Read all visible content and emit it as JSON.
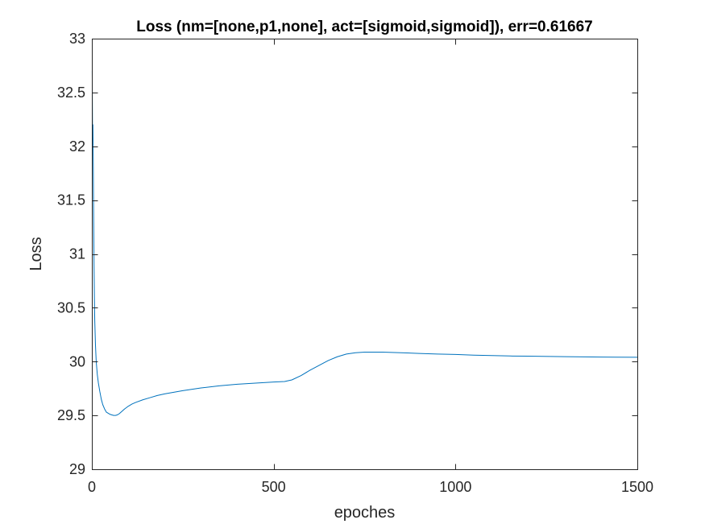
{
  "chart_data": {
    "type": "line",
    "title": "Loss (nm=[none,p1,none], act=[sigmoid,sigmoid]), err=0.61667",
    "xlabel": "epoches",
    "ylabel": "Loss",
    "xlim": [
      0,
      1500
    ],
    "ylim": [
      29,
      33
    ],
    "xticks": [
      0,
      500,
      1000,
      1500
    ],
    "xtick_labels": [
      "0",
      "500",
      "1000",
      "1500"
    ],
    "yticks": [
      29,
      29.5,
      30,
      30.5,
      31,
      31.5,
      32,
      32.5,
      33
    ],
    "ytick_labels": [
      "29",
      "29.5",
      "30",
      "30.5",
      "31",
      "31.5",
      "32",
      "32.5",
      "33"
    ],
    "grid": false,
    "line_color": "#0072BD",
    "series": [
      {
        "x": [
          1,
          2,
          3,
          4,
          5,
          6,
          7,
          8,
          10,
          12,
          15,
          18,
          22,
          26,
          30,
          35,
          40,
          45,
          50,
          55,
          60,
          65,
          70,
          75,
          80,
          90,
          100,
          110,
          120,
          140,
          160,
          180,
          200,
          250,
          300,
          350,
          400,
          450,
          500,
          530,
          550,
          575,
          600,
          625,
          650,
          675,
          700,
          725,
          750,
          800,
          850,
          900,
          950,
          1000,
          1050,
          1100,
          1150,
          1200,
          1300,
          1400,
          1500
        ],
        "y": [
          32.7,
          32.05,
          32.2,
          31.8,
          31.3,
          30.9,
          30.6,
          30.38,
          30.15,
          30.0,
          29.88,
          29.8,
          29.72,
          29.65,
          29.6,
          29.56,
          29.53,
          29.52,
          29.51,
          29.505,
          29.5,
          29.5,
          29.505,
          29.515,
          29.53,
          29.56,
          29.585,
          29.605,
          29.62,
          29.645,
          29.665,
          29.685,
          29.7,
          29.73,
          29.755,
          29.775,
          29.79,
          29.8,
          29.81,
          29.815,
          29.83,
          29.87,
          29.92,
          29.965,
          30.01,
          30.045,
          30.07,
          30.082,
          30.088,
          30.088,
          30.082,
          30.076,
          30.07,
          30.066,
          30.06,
          30.056,
          30.052,
          30.05,
          30.046,
          30.042,
          30.04
        ]
      }
    ]
  }
}
